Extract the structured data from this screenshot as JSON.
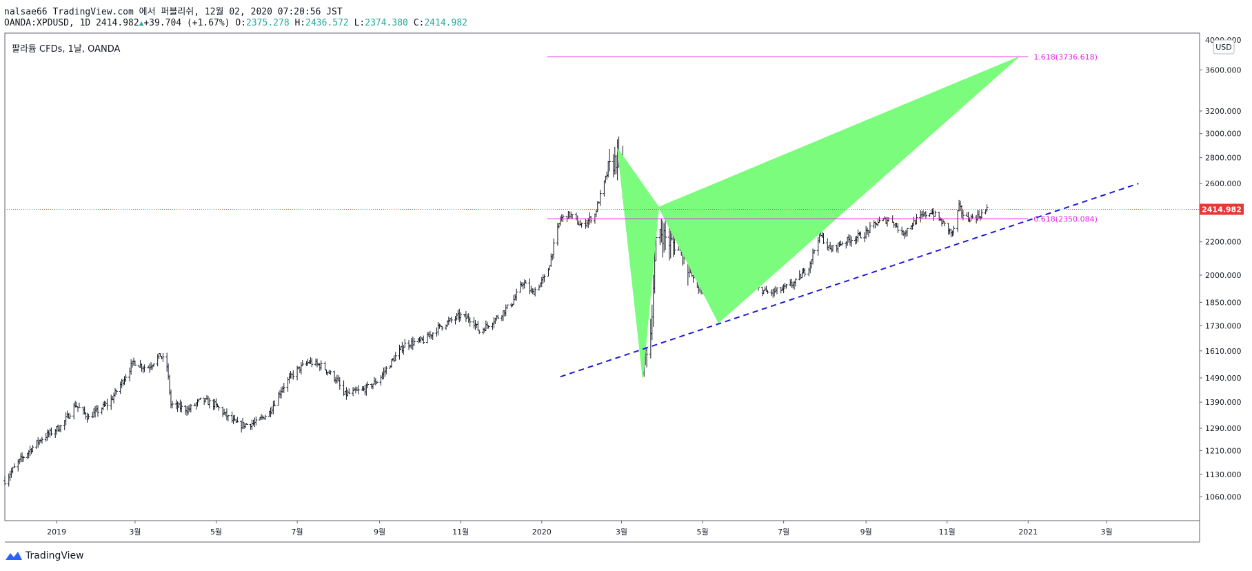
{
  "header": {
    "line1": "nalsae66 TradingView.com 에서 퍼블리쉬, 12월 02, 2020 07:20:56 JST",
    "symbol": "OANDA:XPDUSD, 1D",
    "last": "2414.982",
    "change": "+39.704 (+1.67%)",
    "o_label": "O:",
    "o": "2375.278",
    "h_label": "H:",
    "h": "2436.572",
    "l_label": "L:",
    "l": "2374.380",
    "c_label": "C:",
    "c": "2414.982"
  },
  "colors": {
    "up": "#26a69a",
    "bar": "#131722",
    "pattern_fill": "#7cfc7c",
    "fib_line": "#e91ee9",
    "trendline": "#1a1adb",
    "price_line": "#e53935"
  },
  "brand": {
    "name": "TradingView",
    "icon": "tradingview-logo-icon"
  },
  "chart_data": {
    "type": "ohlc",
    "title": "팔라듐 CFDs, 1날, OANDA",
    "currency": "USD",
    "scale": "log",
    "ylim": [
      990,
      4000
    ],
    "last_price": 2414.982,
    "last_price_label": "2414.982",
    "y_ticks": [
      {
        "v": 3600,
        "label": "3600.000"
      },
      {
        "v": 3200,
        "label": "3200.000"
      },
      {
        "v": 3000,
        "label": "3000.000"
      },
      {
        "v": 2800,
        "label": "2800.000"
      },
      {
        "v": 2600,
        "label": "2600.000"
      },
      {
        "v": 2200,
        "label": "2200.000"
      },
      {
        "v": 2000,
        "label": "2000.000"
      },
      {
        "v": 1850,
        "label": "1850.000"
      },
      {
        "v": 1730,
        "label": "1730.000"
      },
      {
        "v": 1610,
        "label": "1610.000"
      },
      {
        "v": 1490,
        "label": "1490.000"
      },
      {
        "v": 1390,
        "label": "1390.000"
      },
      {
        "v": 1290,
        "label": "1290.000"
      },
      {
        "v": 1210,
        "label": "1210.000"
      },
      {
        "v": 1130,
        "label": "1130.000"
      },
      {
        "v": 1060,
        "label": "1060.000"
      }
    ],
    "top_tick_label": "4000.000",
    "x_ticks": [
      {
        "date": "2019-01-01",
        "label": "2019"
      },
      {
        "date": "2019-03-01",
        "label": "3월"
      },
      {
        "date": "2019-05-01",
        "label": "5월"
      },
      {
        "date": "2019-07-01",
        "label": "7월"
      },
      {
        "date": "2019-09-01",
        "label": "9월"
      },
      {
        "date": "2019-11-01",
        "label": "11월"
      },
      {
        "date": "2020-01-01",
        "label": "2020"
      },
      {
        "date": "2020-03-01",
        "label": "3월"
      },
      {
        "date": "2020-05-01",
        "label": "5월"
      },
      {
        "date": "2020-07-01",
        "label": "7월"
      },
      {
        "date": "2020-09-01",
        "label": "9월"
      },
      {
        "date": "2020-11-01",
        "label": "11월"
      },
      {
        "date": "2021-01-01",
        "label": "2021"
      },
      {
        "date": "2021-03-01",
        "label": "3월"
      }
    ],
    "xlim": [
      "2018-11-23",
      "2021-05-10"
    ],
    "close_path": [
      [
        "2018-11-23",
        1110
      ],
      [
        "2018-12-05",
        1180
      ],
      [
        "2018-12-20",
        1250
      ],
      [
        "2019-01-05",
        1300
      ],
      [
        "2019-01-15",
        1380
      ],
      [
        "2019-01-25",
        1330
      ],
      [
        "2019-02-10",
        1390
      ],
      [
        "2019-02-20",
        1480
      ],
      [
        "2019-02-28",
        1560
      ],
      [
        "2019-03-10",
        1530
      ],
      [
        "2019-03-20",
        1590
      ],
      [
        "2019-03-25",
        1540
      ],
      [
        "2019-03-28",
        1380
      ],
      [
        "2019-04-10",
        1360
      ],
      [
        "2019-04-20",
        1400
      ],
      [
        "2019-04-30",
        1380
      ],
      [
        "2019-05-10",
        1330
      ],
      [
        "2019-05-18",
        1300
      ],
      [
        "2019-05-31",
        1310
      ],
      [
        "2019-06-10",
        1350
      ],
      [
        "2019-06-20",
        1450
      ],
      [
        "2019-06-30",
        1520
      ],
      [
        "2019-07-10",
        1560
      ],
      [
        "2019-07-20",
        1540
      ],
      [
        "2019-07-31",
        1480
      ],
      [
        "2019-08-05",
        1420
      ],
      [
        "2019-08-20",
        1440
      ],
      [
        "2019-08-31",
        1480
      ],
      [
        "2019-09-10",
        1560
      ],
      [
        "2019-09-20",
        1640
      ],
      [
        "2019-10-05",
        1660
      ],
      [
        "2019-10-15",
        1720
      ],
      [
        "2019-10-31",
        1780
      ],
      [
        "2019-11-10",
        1760
      ],
      [
        "2019-11-15",
        1700
      ],
      [
        "2019-11-30",
        1780
      ],
      [
        "2019-12-10",
        1850
      ],
      [
        "2019-12-18",
        1960
      ],
      [
        "2019-12-25",
        1900
      ],
      [
        "2020-01-05",
        2000
      ],
      [
        "2020-01-15",
        2350
      ],
      [
        "2020-01-22",
        2380
      ],
      [
        "2020-01-31",
        2300
      ],
      [
        "2020-02-10",
        2380
      ],
      [
        "2020-02-20",
        2700
      ],
      [
        "2020-02-27",
        2800
      ],
      [
        "2020-03-05",
        2450
      ],
      [
        "2020-03-12",
        2000
      ],
      [
        "2020-03-17",
        1550
      ],
      [
        "2020-03-23",
        1700
      ],
      [
        "2020-03-28",
        2300
      ],
      [
        "2020-04-05",
        2200
      ],
      [
        "2020-04-15",
        2180
      ],
      [
        "2020-04-25",
        1950
      ],
      [
        "2020-05-05",
        1870
      ],
      [
        "2020-05-12",
        1820
      ],
      [
        "2020-05-20",
        1950
      ],
      [
        "2020-05-31",
        1960
      ],
      [
        "2020-06-10",
        1930
      ],
      [
        "2020-06-20",
        1900
      ],
      [
        "2020-06-30",
        1920
      ],
      [
        "2020-07-10",
        1960
      ],
      [
        "2020-07-20",
        2050
      ],
      [
        "2020-07-28",
        2250
      ],
      [
        "2020-08-05",
        2150
      ],
      [
        "2020-08-15",
        2200
      ],
      [
        "2020-08-31",
        2250
      ],
      [
        "2020-09-10",
        2330
      ],
      [
        "2020-09-20",
        2350
      ],
      [
        "2020-09-28",
        2250
      ],
      [
        "2020-10-10",
        2350
      ],
      [
        "2020-10-20",
        2400
      ],
      [
        "2020-10-31",
        2300
      ],
      [
        "2020-11-05",
        2250
      ],
      [
        "2020-11-10",
        2430
      ],
      [
        "2020-11-15",
        2350
      ],
      [
        "2020-11-25",
        2370
      ],
      [
        "2020-12-01",
        2414
      ]
    ],
    "harmonic_pattern": {
      "fill": "#7cfc7c",
      "points": [
        [
          "2020-02-27",
          2875
        ],
        [
          "2020-03-17",
          1490
        ],
        [
          "2020-03-29",
          2430
        ],
        [
          "2020-05-13",
          1745
        ],
        [
          "2020-12-25",
          3737
        ]
      ]
    },
    "fib_levels": [
      {
        "label": "1.618(3736.618)",
        "value": 3736.618,
        "from": "2020-01-05",
        "to": "2021-01-01"
      },
      {
        "label": "0.618(2350.084)",
        "value": 2350.084,
        "from": "2020-01-05",
        "to": "2021-01-01"
      }
    ],
    "trendline": {
      "from": [
        "2020-01-15",
        1495
      ],
      "to": [
        "2021-03-25",
        2600
      ]
    }
  }
}
